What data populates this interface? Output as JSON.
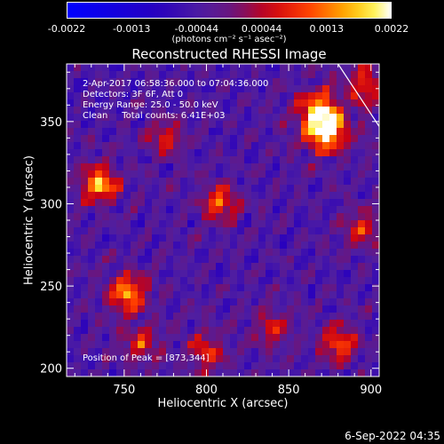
{
  "colorbar": {
    "ticks": [
      "-0.0022",
      "-0.0013",
      "-0.00044",
      "0.00044",
      "0.0013",
      "0.0022"
    ],
    "units": "(photons cm⁻² s⁻¹ asec⁻²)"
  },
  "chart_data": {
    "type": "heatmap",
    "title": "Reconstructed RHESSI Image",
    "xlabel": "Heliocentric X (arcsec)",
    "ylabel": "Heliocentric Y (arcsec)",
    "xlim": [
      715,
      905
    ],
    "ylim": [
      195,
      385
    ],
    "x_ticks": [
      "750",
      "800",
      "850",
      "900"
    ],
    "y_ticks": [
      "200",
      "250",
      "300",
      "350"
    ],
    "x_tick_values": [
      750,
      800,
      850,
      900
    ],
    "y_tick_values": [
      200,
      250,
      300,
      350
    ],
    "zlim": [
      -0.0022,
      0.0022
    ],
    "colormap": "blue-purple-red-yellow-white",
    "peak_sources": [
      {
        "x": 873,
        "y": 344,
        "intensity": 1.0
      },
      {
        "x": 868,
        "y": 356,
        "intensity": 0.8
      },
      {
        "x": 735,
        "y": 312,
        "intensity": 0.75
      },
      {
        "x": 752,
        "y": 246,
        "intensity": 0.72
      },
      {
        "x": 808,
        "y": 300,
        "intensity": 0.55
      },
      {
        "x": 880,
        "y": 215,
        "intensity": 0.55
      },
      {
        "x": 898,
        "y": 372,
        "intensity": 0.5
      },
      {
        "x": 800,
        "y": 210,
        "intensity": 0.45
      },
      {
        "x": 775,
        "y": 340,
        "intensity": 0.4
      },
      {
        "x": 895,
        "y": 285,
        "intensity": 0.45
      },
      {
        "x": 840,
        "y": 225,
        "intensity": 0.4
      },
      {
        "x": 760,
        "y": 215,
        "intensity": 0.4
      }
    ],
    "limb": [
      [
        880,
        385
      ],
      [
        905,
        347
      ]
    ]
  },
  "annotations": {
    "time_range": "2-Apr-2017 06:58:36.000 to 07:04:36.000",
    "detectors": "Detectors: 3F 6F, Att 0",
    "energy": "Energy Range: 25.0 - 50.0 keV",
    "clean": "Clean     Total counts: 6.41E+03",
    "peak": "Position of Peak = [873,344]"
  },
  "datestamp": "6-Sep-2022 04:35"
}
